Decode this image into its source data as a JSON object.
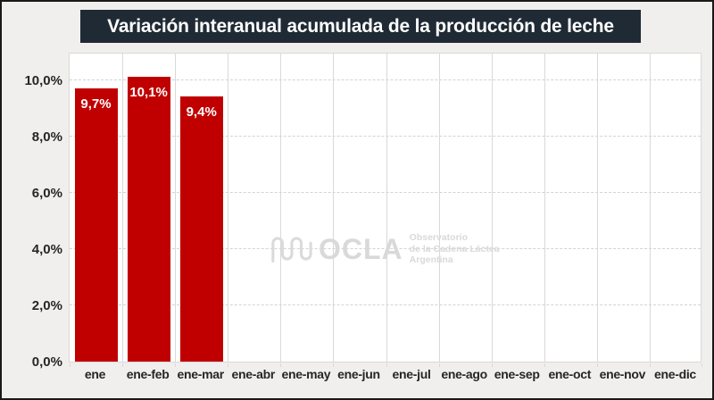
{
  "title": "Variación interanual acumulada de la producción de leche",
  "watermark": {
    "name": "OCLA",
    "icon": "wave-squiggle-icon",
    "subtitle_line1": "Observatorio",
    "subtitle_line2": "de la Cadena Láctea",
    "subtitle_line3": "Argentina"
  },
  "colors": {
    "bar": "#c00000",
    "bar_label": "#ffffff",
    "title_bg": "#1f2a35",
    "title_text": "#ffffff",
    "canvas_bg": "#f0efed",
    "plot_bg": "#ffffff",
    "gridline": "#d9d9d9",
    "axis_text": "#262626",
    "watermark": "#d9d9d9"
  },
  "chart_data": {
    "type": "bar",
    "title": "Variación interanual acumulada de la producción de leche",
    "categories": [
      "ene",
      "ene-feb",
      "ene-mar",
      "ene-abr",
      "ene-may",
      "ene-jun",
      "ene-jul",
      "ene-ago",
      "ene-sep",
      "ene-oct",
      "ene-nov",
      "ene-dic"
    ],
    "values": [
      9.7,
      10.1,
      9.4,
      null,
      null,
      null,
      null,
      null,
      null,
      null,
      null,
      null
    ],
    "value_labels": [
      "9,7%",
      "10,1%",
      "9,4%",
      "",
      "",
      "",
      "",
      "",
      "",
      "",
      "",
      ""
    ],
    "y_ticks": [
      0,
      2,
      4,
      6,
      8,
      10
    ],
    "y_tick_labels": [
      "0,0%",
      "2,0%",
      "4,0%",
      "6,0%",
      "8,0%",
      "10,0%"
    ],
    "ylim": [
      0,
      11
    ],
    "xlabel": "",
    "ylabel": "",
    "grid": "horizontal-dashed and vertical-solid",
    "legend": false
  }
}
